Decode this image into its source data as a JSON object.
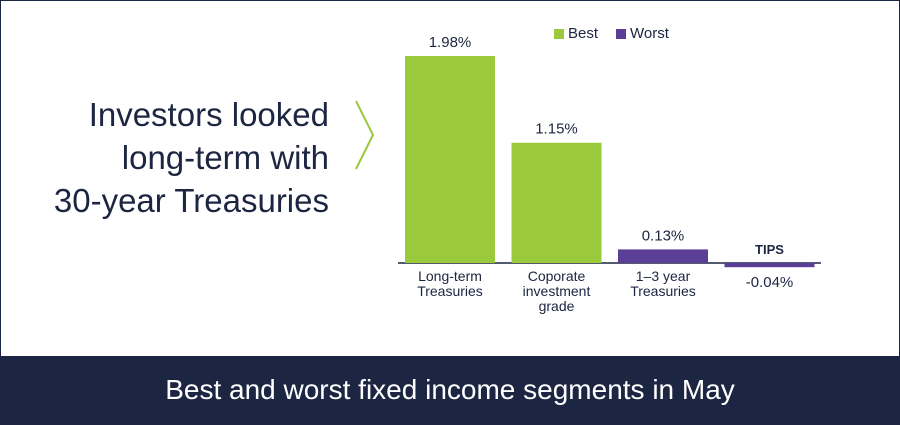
{
  "chart_data": {
    "type": "bar",
    "headline": [
      "Investors looked",
      "long-term with",
      "30-year Treasuries"
    ],
    "title": "Best and worst fixed income segments in May",
    "categories": [
      "Long-term Treasuries",
      "Coporate investment grade",
      "1–3 year Treasuries",
      "TIPS"
    ],
    "series": [
      {
        "name": "Best",
        "color": "#9aca3c",
        "values": [
          1.98,
          1.15,
          null,
          null
        ],
        "value_labels": [
          "1.98%",
          "1.15%",
          null,
          null
        ]
      },
      {
        "name": "Worst",
        "color": "#5b3f97",
        "values": [
          null,
          null,
          0.13,
          -0.04
        ],
        "value_labels": [
          null,
          null,
          "0.13%",
          "-0.04%"
        ]
      }
    ]
  }
}
